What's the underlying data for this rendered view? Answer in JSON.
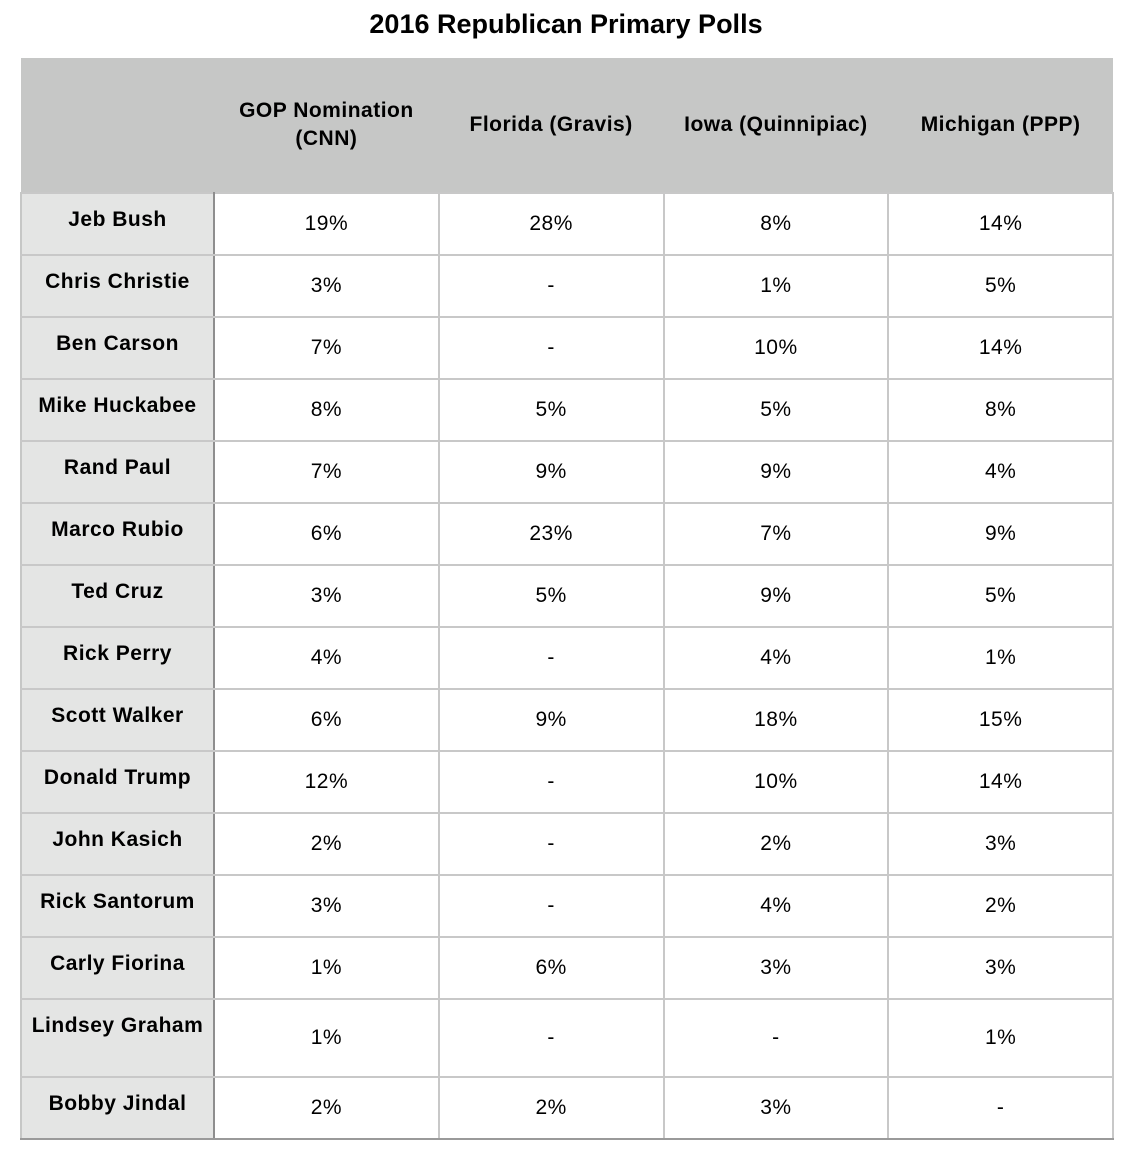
{
  "chart_data": {
    "type": "table",
    "title": "2016 Republican Primary Polls",
    "columns": [
      "",
      "GOP Nomination (CNN)",
      "Florida (Gravis)",
      "Iowa (Quinnipiac)",
      "Michigan (PPP)"
    ],
    "rows": [
      {
        "name": "Jeb Bush",
        "values": [
          "19%",
          "28%",
          "8%",
          "14%"
        ]
      },
      {
        "name": "Chris Christie",
        "values": [
          "3%",
          "-",
          "1%",
          "5%"
        ]
      },
      {
        "name": "Ben Carson",
        "values": [
          "7%",
          "-",
          "10%",
          "14%"
        ]
      },
      {
        "name": "Mike Huckabee",
        "values": [
          "8%",
          "5%",
          "5%",
          "8%"
        ]
      },
      {
        "name": "Rand Paul",
        "values": [
          "7%",
          "9%",
          "9%",
          "4%"
        ]
      },
      {
        "name": "Marco Rubio",
        "values": [
          "6%",
          "23%",
          "7%",
          "9%"
        ]
      },
      {
        "name": "Ted Cruz",
        "values": [
          "3%",
          "5%",
          "9%",
          "5%"
        ]
      },
      {
        "name": "Rick Perry",
        "values": [
          "4%",
          "-",
          "4%",
          "1%"
        ]
      },
      {
        "name": "Scott Walker",
        "values": [
          "6%",
          "9%",
          "18%",
          "15%"
        ]
      },
      {
        "name": "Donald Trump",
        "values": [
          "12%",
          "-",
          "10%",
          "14%"
        ]
      },
      {
        "name": "John Kasich",
        "values": [
          "2%",
          "-",
          "2%",
          "3%"
        ]
      },
      {
        "name": "Rick Santorum",
        "values": [
          "3%",
          "-",
          "4%",
          "2%"
        ]
      },
      {
        "name": "Carly Fiorina",
        "values": [
          "1%",
          "6%",
          "3%",
          "3%"
        ]
      },
      {
        "name": "Lindsey Graham",
        "values": [
          "1%",
          "-",
          "-",
          "1%"
        ]
      },
      {
        "name": "Bobby Jindal",
        "values": [
          "2%",
          "2%",
          "3%",
          "-"
        ]
      }
    ]
  },
  "colors": {
    "header_bg": "#c6c7c6",
    "row_header_bg": "#e4e5e4",
    "grid": "#c8c8c8"
  }
}
